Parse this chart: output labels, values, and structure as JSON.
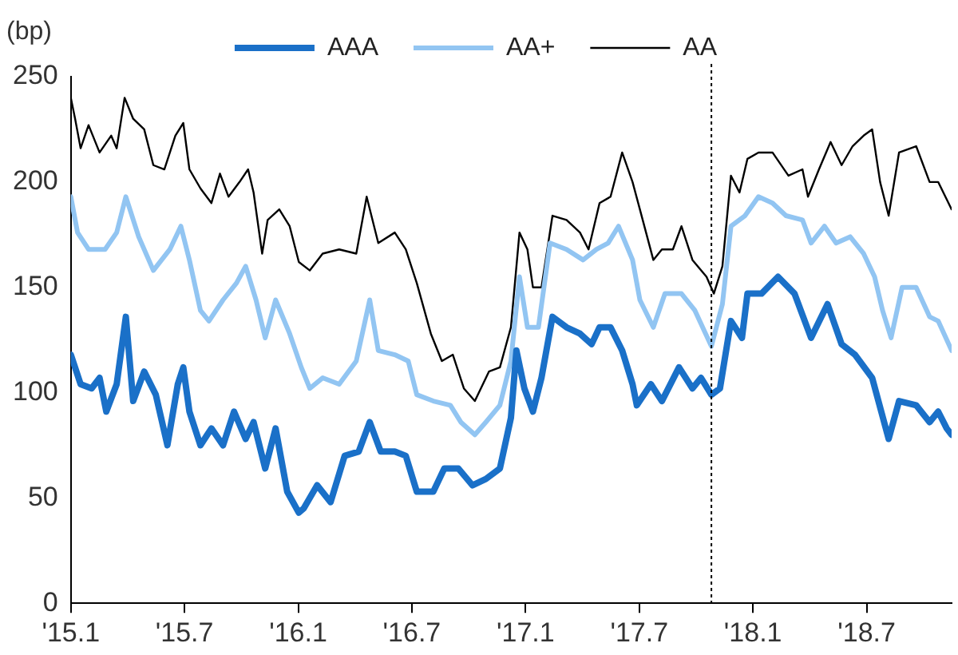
{
  "chart_data": {
    "type": "line",
    "ylabel": "(bp)",
    "legend": "top",
    "grid": false,
    "marker": "none",
    "line_style": "solid",
    "xlim": [
      "2015-01-01",
      "2018-11-16"
    ],
    "ylim": [
      0,
      250
    ],
    "yticks": [
      0,
      50,
      100,
      150,
      200,
      250
    ],
    "xticks": [
      {
        "value": "2015-01",
        "label": "'15.1"
      },
      {
        "value": "2015-07",
        "label": "'15.7"
      },
      {
        "value": "2016-01",
        "label": "'16.1"
      },
      {
        "value": "2016-07",
        "label": "'16.7"
      },
      {
        "value": "2017-01",
        "label": "'17.1"
      },
      {
        "value": "2017-07",
        "label": "'17.7"
      },
      {
        "value": "2018-01",
        "label": "'18.1"
      },
      {
        "value": "2018-07",
        "label": "'18.7"
      }
    ],
    "ref_lines": [
      {
        "axis": "x",
        "value": "2017-10-26",
        "color": "#000000",
        "line_style": "dotted"
      }
    ],
    "series": [
      {
        "name": "AAA",
        "color": "#1a70c8",
        "x": [
          "2015-01-01",
          "2015-01-17",
          "2015-02-04",
          "2015-02-17",
          "2015-02-28",
          "2015-03-14",
          "2015-03-29",
          "2015-04-10",
          "2015-04-28",
          "2015-05-16",
          "2015-06-04",
          "2015-06-21",
          "2015-06-30",
          "2015-07-09",
          "2015-07-27",
          "2015-08-14",
          "2015-09-02",
          "2015-09-20",
          "2015-10-08",
          "2015-10-21",
          "2015-11-09",
          "2015-11-26",
          "2015-12-14",
          "2016-01-02",
          "2016-01-10",
          "2016-02-01",
          "2016-02-23",
          "2016-03-15",
          "2016-04-07",
          "2016-04-25",
          "2016-05-12",
          "2016-06-04",
          "2016-06-22",
          "2016-07-09",
          "2016-08-05",
          "2016-08-23",
          "2016-09-15",
          "2016-10-07",
          "2016-10-29",
          "2016-11-21",
          "2016-12-08",
          "2016-12-17",
          "2016-12-30",
          "2017-01-13",
          "2017-01-27",
          "2017-02-14",
          "2017-03-06",
          "2017-03-28",
          "2017-04-16",
          "2017-04-29",
          "2017-05-16",
          "2017-06-04",
          "2017-06-21",
          "2017-06-28",
          "2017-07-20",
          "2017-08-07",
          "2017-09-04",
          "2017-09-26",
          "2017-10-09",
          "2017-10-26",
          "2017-11-09",
          "2017-11-27",
          "2017-12-14",
          "2017-12-23",
          "2018-01-15",
          "2018-02-11",
          "2018-03-07",
          "2018-04-03",
          "2018-04-30",
          "2018-05-22",
          "2018-06-13",
          "2018-07-10",
          "2018-08-06",
          "2018-08-23",
          "2018-09-20",
          "2018-10-11",
          "2018-10-25",
          "2018-11-08",
          "2018-11-16"
        ],
        "values": [
          118,
          104,
          102,
          107,
          91,
          104,
          136,
          96,
          110,
          99,
          75,
          104,
          112,
          91,
          75,
          83,
          75,
          91,
          78,
          86,
          64,
          83,
          53,
          43,
          45,
          56,
          48,
          70,
          72,
          86,
          72,
          72,
          70,
          53,
          53,
          64,
          64,
          56,
          59,
          64,
          88,
          120,
          102,
          91,
          107,
          136,
          131,
          128,
          123,
          131,
          131,
          120,
          104,
          94,
          104,
          96,
          112,
          102,
          107,
          99,
          102,
          134,
          126,
          147,
          147,
          155,
          147,
          126,
          142,
          123,
          118,
          107,
          78,
          96,
          94,
          86,
          91,
          83,
          80
        ]
      },
      {
        "name": "AA+",
        "color": "#92c5f2",
        "x": [
          "2015-01-01",
          "2015-01-12",
          "2015-01-30",
          "2015-02-26",
          "2015-03-14",
          "2015-03-29",
          "2015-04-19",
          "2015-05-12",
          "2015-06-08",
          "2015-06-26",
          "2015-07-09",
          "2015-07-27",
          "2015-08-10",
          "2015-09-02",
          "2015-09-24",
          "2015-10-08",
          "2015-10-25",
          "2015-11-09",
          "2015-11-26",
          "2015-12-18",
          "2016-01-06",
          "2016-01-20",
          "2016-02-10",
          "2016-03-06",
          "2016-04-03",
          "2016-04-25",
          "2016-05-08",
          "2016-06-04",
          "2016-06-26",
          "2016-07-09",
          "2016-08-05",
          "2016-09-02",
          "2016-09-19",
          "2016-10-11",
          "2016-10-29",
          "2016-11-21",
          "2016-12-08",
          "2016-12-22",
          "2017-01-04",
          "2017-01-22",
          "2017-02-10",
          "2017-03-06",
          "2017-04-02",
          "2017-04-24",
          "2017-05-12",
          "2017-05-29",
          "2017-06-21",
          "2017-07-02",
          "2017-07-24",
          "2017-08-12",
          "2017-09-08",
          "2017-09-30",
          "2017-10-26",
          "2017-11-13",
          "2017-11-27",
          "2017-12-19",
          "2018-01-10",
          "2018-02-02",
          "2018-02-24",
          "2018-03-20",
          "2018-04-03",
          "2018-04-25",
          "2018-05-13",
          "2018-06-05",
          "2018-06-27",
          "2018-07-14",
          "2018-07-27",
          "2018-08-10",
          "2018-08-28",
          "2018-09-20",
          "2018-10-11",
          "2018-10-25",
          "2018-11-16"
        ],
        "values": [
          193,
          176,
          168,
          168,
          176,
          193,
          174,
          158,
          168,
          179,
          163,
          139,
          134,
          144,
          152,
          160,
          144,
          126,
          144,
          128,
          112,
          102,
          107,
          104,
          115,
          144,
          120,
          118,
          115,
          99,
          96,
          94,
          86,
          80,
          86,
          94,
          115,
          155,
          131,
          131,
          171,
          168,
          163,
          168,
          171,
          179,
          163,
          144,
          131,
          147,
          147,
          139,
          122,
          142,
          179,
          184,
          193,
          190,
          184,
          182,
          171,
          179,
          171,
          174,
          166,
          155,
          139,
          126,
          150,
          150,
          136,
          134,
          120
        ]
      },
      {
        "name": "AA",
        "color": "#000000",
        "x": [
          "2015-01-01",
          "2015-01-08",
          "2015-01-17",
          "2015-01-30",
          "2015-02-17",
          "2015-03-05",
          "2015-03-14",
          "2015-03-27",
          "2015-04-10",
          "2015-04-28",
          "2015-05-12",
          "2015-05-30",
          "2015-06-17",
          "2015-06-30",
          "2015-07-09",
          "2015-07-27",
          "2015-08-14",
          "2015-08-28",
          "2015-09-11",
          "2015-09-29",
          "2015-10-12",
          "2015-10-21",
          "2015-11-04",
          "2015-11-13",
          "2015-12-01",
          "2015-12-18",
          "2016-01-02",
          "2016-01-20",
          "2016-02-10",
          "2016-03-06",
          "2016-04-03",
          "2016-04-20",
          "2016-05-08",
          "2016-06-04",
          "2016-06-22",
          "2016-07-09",
          "2016-08-01",
          "2016-08-19",
          "2016-09-06",
          "2016-09-24",
          "2016-10-11",
          "2016-11-03",
          "2016-11-21",
          "2016-12-08",
          "2016-12-22",
          "2017-01-04",
          "2017-01-13",
          "2017-01-27",
          "2017-02-14",
          "2017-03-06",
          "2017-03-28",
          "2017-04-11",
          "2017-04-29",
          "2017-05-16",
          "2017-06-04",
          "2017-06-21",
          "2017-07-02",
          "2017-07-24",
          "2017-08-07",
          "2017-08-25",
          "2017-09-08",
          "2017-09-26",
          "2017-10-18",
          "2017-10-30",
          "2017-11-13",
          "2017-11-27",
          "2017-12-10",
          "2017-12-23",
          "2018-01-10",
          "2018-02-02",
          "2018-02-28",
          "2018-03-20",
          "2018-03-29",
          "2018-04-16",
          "2018-05-04",
          "2018-05-22",
          "2018-06-09",
          "2018-06-27",
          "2018-07-10",
          "2018-07-23",
          "2018-08-06",
          "2018-08-23",
          "2018-09-20",
          "2018-10-11",
          "2018-10-25",
          "2018-11-16"
        ],
        "values": [
          240,
          230,
          216,
          227,
          214,
          222,
          216,
          240,
          230,
          225,
          208,
          206,
          222,
          228,
          206,
          197,
          190,
          204,
          193,
          200,
          206,
          195,
          166,
          182,
          187,
          179,
          162,
          158,
          166,
          168,
          166,
          193,
          171,
          176,
          168,
          152,
          128,
          115,
          118,
          102,
          96,
          110,
          112,
          131,
          176,
          168,
          150,
          150,
          184,
          182,
          176,
          168,
          190,
          193,
          214,
          200,
          187,
          163,
          168,
          168,
          179,
          163,
          155,
          147,
          160,
          203,
          195,
          211,
          214,
          214,
          203,
          206,
          193,
          206,
          219,
          208,
          217,
          222,
          225,
          200,
          184,
          214,
          217,
          200,
          200,
          187
        ]
      }
    ]
  }
}
